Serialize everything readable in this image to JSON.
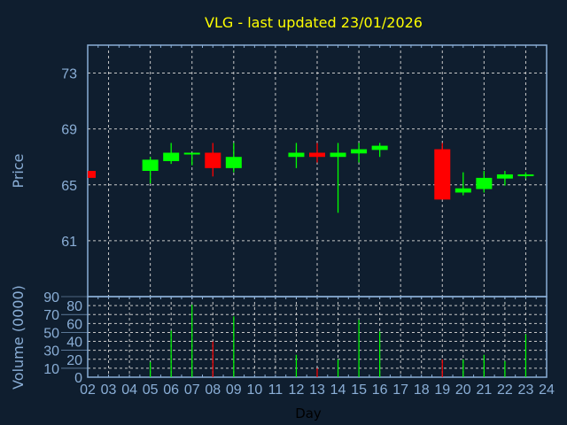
{
  "colors": {
    "background": "#0f1e2f",
    "title": "#ffff00",
    "axis": "#8aaed6",
    "grid": "#c8c8c8",
    "up": "#00ff00",
    "down": "#ff0000",
    "xlabel": "#000000"
  },
  "chart_data": [
    {
      "type": "candlestick",
      "title": "VLG - last updated 23/01/2026",
      "xlabel": "",
      "ylabel": "Price",
      "xlim": [
        2,
        24
      ],
      "ylim": [
        57,
        75
      ],
      "yticks": [
        61,
        65,
        69,
        73
      ],
      "grid": true,
      "candles": [
        {
          "day": "02",
          "open": 66.0,
          "high": 66.0,
          "low": 65.5,
          "close": 65.5
        },
        {
          "day": "05",
          "open": 66.0,
          "high": 67.0,
          "low": 65.1,
          "close": 66.8
        },
        {
          "day": "06",
          "open": 66.7,
          "high": 68.0,
          "low": 66.5,
          "close": 67.3
        },
        {
          "day": "07",
          "open": 67.2,
          "high": 67.3,
          "low": 66.4,
          "close": 67.3
        },
        {
          "day": "08",
          "open": 67.3,
          "high": 68.0,
          "low": 65.6,
          "close": 66.2
        },
        {
          "day": "09",
          "open": 66.2,
          "high": 68.0,
          "low": 65.9,
          "close": 67.0
        },
        {
          "day": "12",
          "open": 67.0,
          "high": 68.0,
          "low": 66.2,
          "close": 67.3
        },
        {
          "day": "13",
          "open": 67.3,
          "high": 68.0,
          "low": 66.6,
          "close": 67.0
        },
        {
          "day": "14",
          "open": 67.0,
          "high": 68.0,
          "low": 63.0,
          "close": 67.3
        },
        {
          "day": "15",
          "open": 67.25,
          "high": 68.0,
          "low": 66.6,
          "close": 67.55
        },
        {
          "day": "16",
          "open": 67.5,
          "high": 68.0,
          "low": 67.0,
          "close": 67.8
        },
        {
          "day": "19",
          "open": 67.55,
          "high": 68.0,
          "low": 63.95,
          "close": 63.95
        },
        {
          "day": "20",
          "open": 64.45,
          "high": 65.9,
          "low": 64.25,
          "close": 64.75
        },
        {
          "day": "21",
          "open": 64.7,
          "high": 66.0,
          "low": 64.45,
          "close": 65.5
        },
        {
          "day": "22",
          "open": 65.45,
          "high": 66.0,
          "low": 64.95,
          "close": 65.75
        },
        {
          "day": "23",
          "open": 65.65,
          "high": 65.9,
          "low": 65.45,
          "close": 65.75
        }
      ]
    },
    {
      "type": "bar",
      "xlabel": "Day",
      "ylabel": "Volume (0000)",
      "xlim": [
        2,
        24
      ],
      "ylim": [
        0,
        90
      ],
      "yticks": [
        0,
        10,
        20,
        30,
        40,
        50,
        60,
        70,
        80,
        90
      ],
      "xticks": [
        "02",
        "03",
        "04",
        "05",
        "06",
        "07",
        "08",
        "09",
        "10",
        "11",
        "12",
        "13",
        "14",
        "15",
        "16",
        "17",
        "18",
        "19",
        "20",
        "21",
        "22",
        "23",
        "24"
      ],
      "grid": true,
      "bars": [
        {
          "day": "05",
          "value": 17,
          "direction": "up"
        },
        {
          "day": "06",
          "value": 52,
          "direction": "up"
        },
        {
          "day": "07",
          "value": 81,
          "direction": "up"
        },
        {
          "day": "08",
          "value": 40,
          "direction": "down"
        },
        {
          "day": "09",
          "value": 68,
          "direction": "up"
        },
        {
          "day": "12",
          "value": 25,
          "direction": "up"
        },
        {
          "day": "13",
          "value": 10,
          "direction": "down"
        },
        {
          "day": "14",
          "value": 20,
          "direction": "up"
        },
        {
          "day": "15",
          "value": 64,
          "direction": "up"
        },
        {
          "day": "16",
          "value": 51,
          "direction": "up"
        },
        {
          "day": "19",
          "value": 20,
          "direction": "down"
        },
        {
          "day": "20",
          "value": 20,
          "direction": "up"
        },
        {
          "day": "21",
          "value": 25,
          "direction": "up"
        },
        {
          "day": "22",
          "value": 18,
          "direction": "up"
        },
        {
          "day": "23",
          "value": 48,
          "direction": "up"
        }
      ]
    }
  ]
}
